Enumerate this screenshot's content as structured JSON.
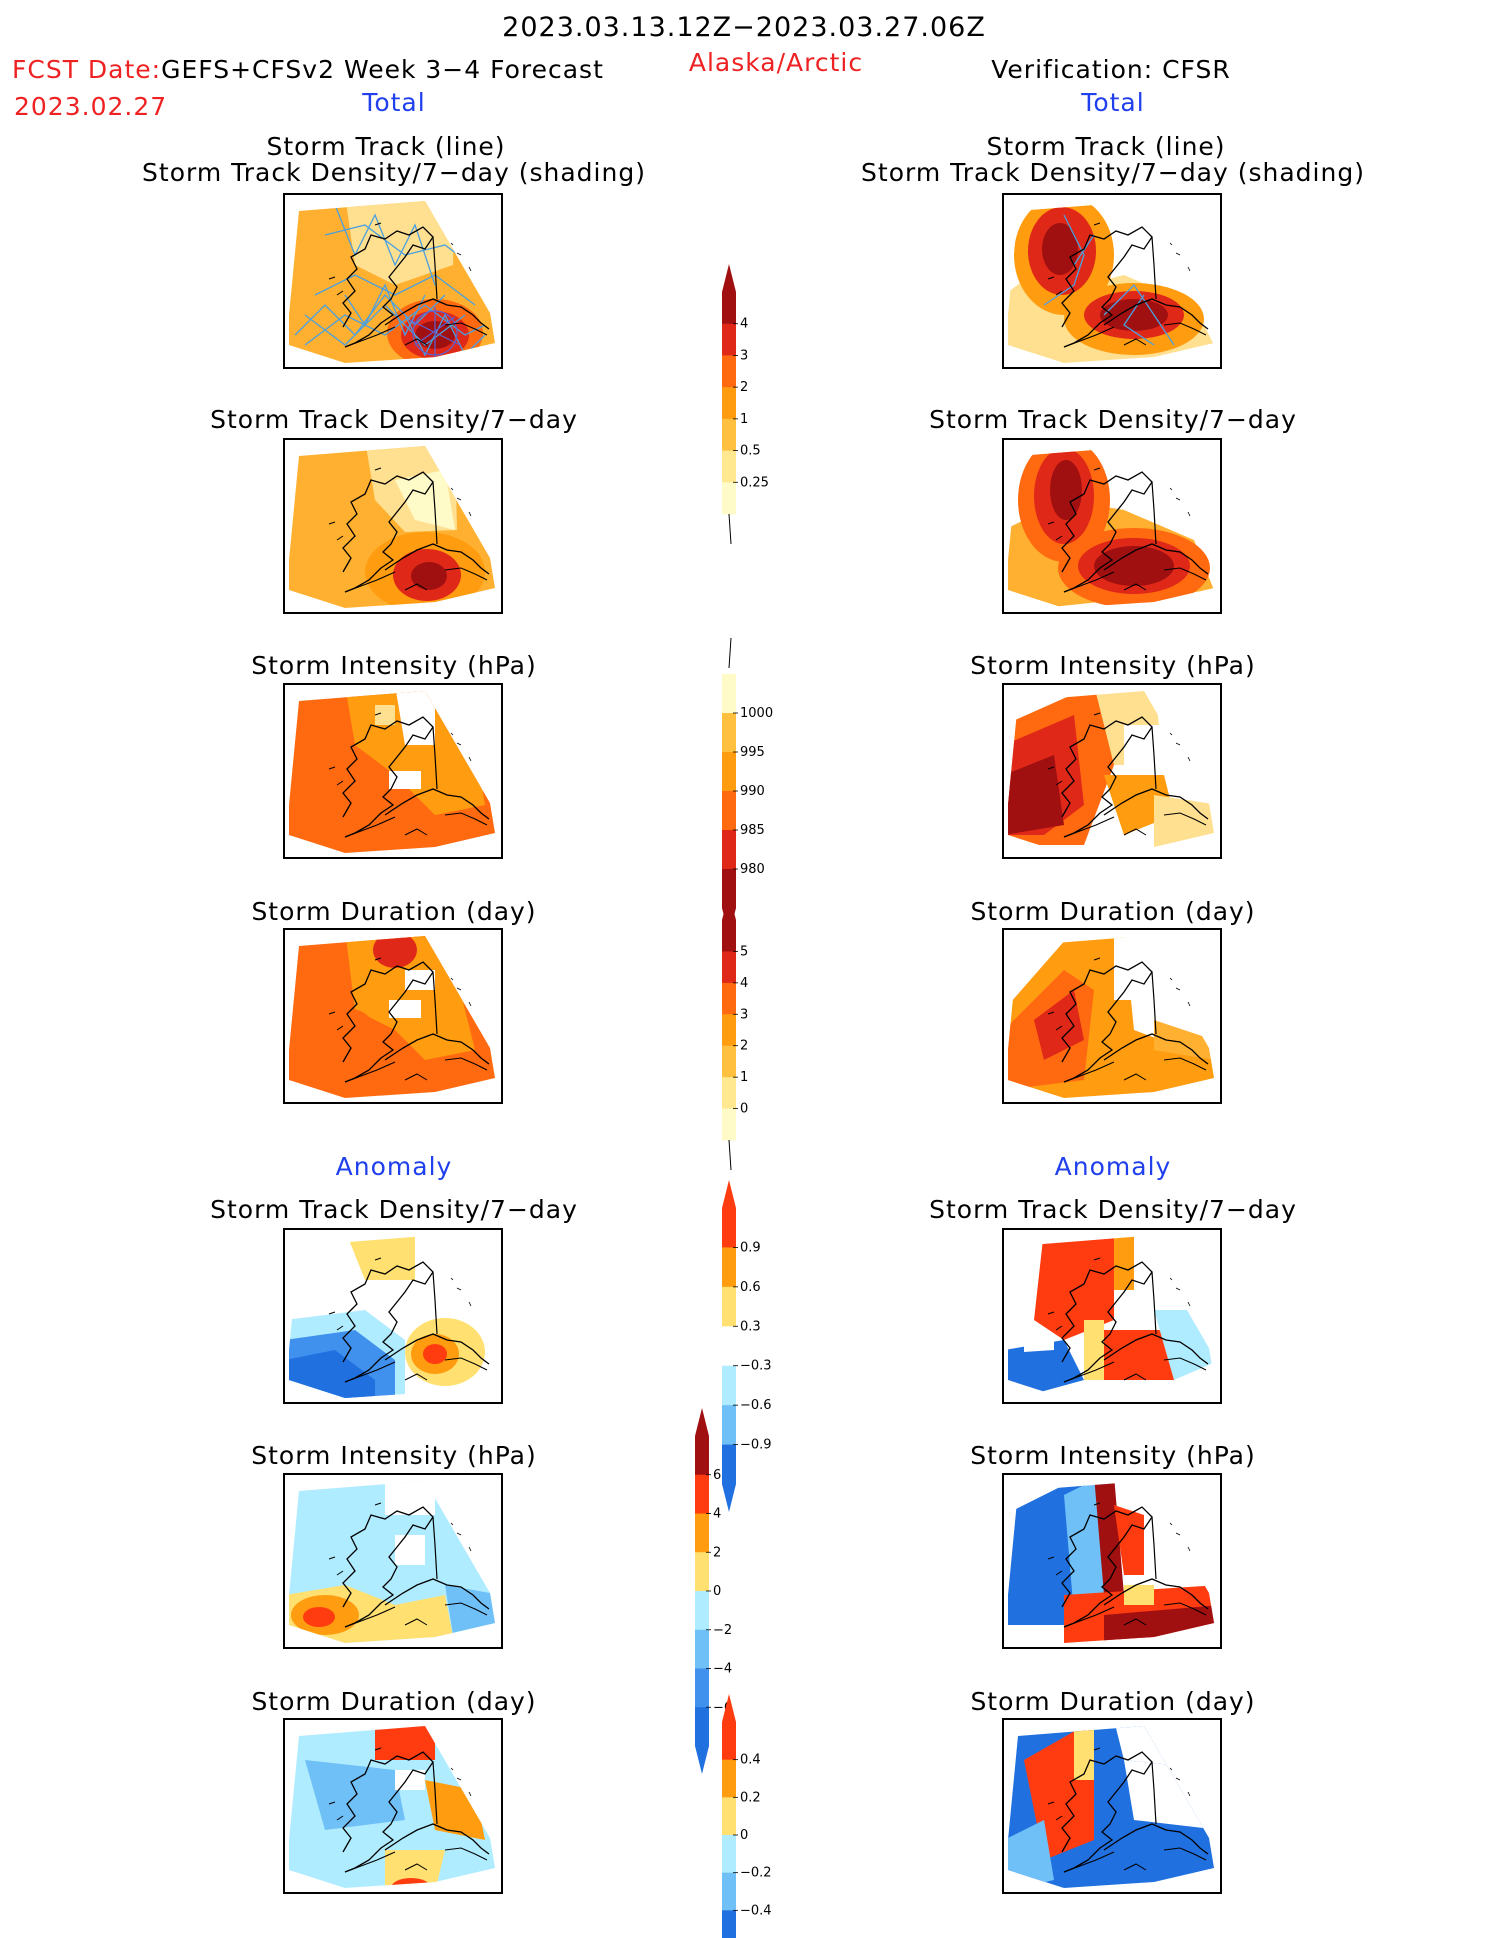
{
  "header": {
    "date_range": "2023.03.13.12Z−2023.03.27.06Z",
    "fcst_label": "FCST Date:",
    "fcst_model": "GEFS+CFSv2 Week 3−4 Forecast",
    "region": "Alaska/Arctic",
    "verification": "Verification: CFSR",
    "fcst_date": "2023.02.27"
  },
  "sections": {
    "total_left": "Total",
    "total_right": "Total",
    "anomaly_left": "Anomaly",
    "anomaly_right": "Anomaly"
  },
  "titles": {
    "track_line": "Storm Track (line)",
    "track_shading": "Storm Track Density/7−day (shading)",
    "density": "Storm Track Density/7−day",
    "intensity": "Storm Intensity (hPa)",
    "duration": "Storm Duration (day)"
  },
  "colorbars": {
    "density": {
      "ticks": [
        "4",
        "3",
        "2",
        "1",
        "0.5",
        "0.25"
      ],
      "colors": [
        "#a01010",
        "#e02818",
        "#ff6a10",
        "#ff9c10",
        "#ffc040",
        "#ffe890",
        "#fffbc8"
      ]
    },
    "intensity": {
      "ticks": [
        "1000",
        "995",
        "990",
        "985",
        "980"
      ],
      "colors": [
        "#fffbc8",
        "#ffc040",
        "#ff9c10",
        "#ff6a10",
        "#e02818",
        "#a01010"
      ]
    },
    "duration": {
      "ticks": [
        "5",
        "4",
        "3",
        "2",
        "1",
        "0"
      ],
      "colors": [
        "#a01010",
        "#e02818",
        "#ff6a10",
        "#ff9c10",
        "#ffc040",
        "#ffe890",
        "#fffbc8"
      ]
    },
    "anom_density": {
      "ticks": [
        "0.9",
        "0.6",
        "0.3",
        "−0.3",
        "−0.6",
        "−0.9"
      ],
      "colors": [
        "#ff3c10",
        "#ff9c10",
        "#ffe070",
        "#ffffff",
        "#b0ecff",
        "#70c0f8",
        "#2070e0"
      ]
    },
    "anom_intensity": {
      "ticks": [
        "6",
        "4",
        "2",
        "0",
        "−2",
        "−4",
        "−6"
      ],
      "colors": [
        "#a01010",
        "#ff3c10",
        "#ff9c10",
        "#ffe070",
        "#b0ecff",
        "#70c0f8",
        "#4090ee",
        "#2070e0"
      ]
    },
    "anom_duration": {
      "ticks": [
        "0.4",
        "0.2",
        "0",
        "−0.2",
        "−0.4"
      ],
      "colors": [
        "#ff3c10",
        "#ff9c10",
        "#ffe070",
        "#b0ecff",
        "#70c0f8",
        "#2070e0"
      ]
    }
  }
}
